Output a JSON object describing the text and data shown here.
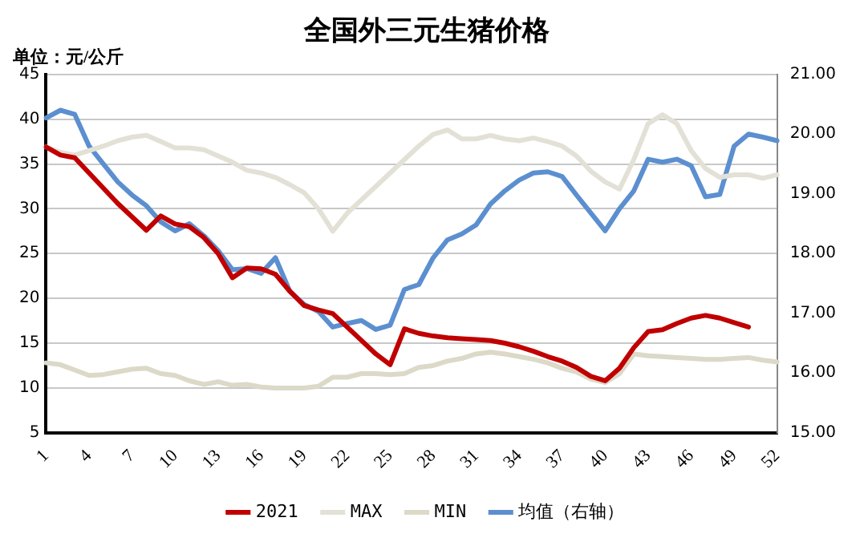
{
  "chart_data": {
    "type": "line",
    "title": "全国外三元生猪价格",
    "annotations": [
      "单位：元/公斤"
    ],
    "categories": [
      "1",
      null,
      null,
      "4",
      null,
      null,
      "7",
      null,
      null,
      "10",
      null,
      null,
      "13",
      null,
      null,
      "16",
      null,
      null,
      "19",
      null,
      null,
      "22",
      null,
      null,
      "25",
      null,
      null,
      "28",
      null,
      null,
      "31",
      null,
      null,
      "34",
      null,
      null,
      "37",
      null,
      null,
      "40",
      null,
      null,
      "43",
      null,
      null,
      "46",
      null,
      null,
      "49",
      null,
      null,
      "52"
    ],
    "series": [
      {
        "name": "2021",
        "color": "#c00000",
        "values": [
          36.9,
          36,
          35.7,
          34,
          32.3,
          30.6,
          29.1,
          27.6,
          29.2,
          28.3,
          28,
          26.8,
          25,
          22.3,
          23.4,
          23.3,
          22.7,
          20.8,
          19.2,
          18.7,
          18.3,
          16.8,
          15.3,
          13.8,
          12.6,
          16.6,
          16.1,
          15.8,
          15.6,
          15.5,
          15.4,
          15.3,
          15,
          14.6,
          14.1,
          13.5,
          13,
          12.3,
          11.3,
          10.8,
          12.2,
          14.5,
          16.3,
          16.5,
          17.2,
          17.8,
          18.1,
          17.8,
          17.3,
          16.8,
          null,
          null
        ]
      },
      {
        "name": "MAX",
        "color": "#e3e1d6",
        "values": [
          36.9,
          36.3,
          36,
          36.5,
          37,
          37.6,
          38,
          38.2,
          37.5,
          36.8,
          36.8,
          36.6,
          35.9,
          35.2,
          34.3,
          34,
          33.5,
          32.7,
          31.8,
          30,
          27.5,
          29.5,
          31,
          32.5,
          34,
          35.5,
          37,
          38.3,
          38.8,
          37.8,
          37.8,
          38.2,
          37.8,
          37.6,
          37.9,
          37.5,
          37,
          35.9,
          34.2,
          33,
          32.2,
          35.5,
          39.5,
          40.5,
          39.5,
          36.5,
          34.5,
          33.5,
          33.8,
          33.8,
          33.4,
          33.8
        ]
      },
      {
        "name": "MIN",
        "color": "#dcd9c8",
        "values": [
          12.8,
          12.6,
          12,
          11.4,
          11.5,
          11.8,
          12.1,
          12.2,
          11.6,
          11.4,
          10.8,
          10.4,
          10.7,
          10.3,
          10.4,
          10.1,
          10,
          10,
          10,
          10.2,
          11.2,
          11.2,
          11.6,
          11.6,
          11.5,
          11.6,
          12.3,
          12.5,
          13,
          13.3,
          13.8,
          14,
          13.8,
          13.5,
          13.2,
          12.8,
          12.2,
          11.8,
          11,
          10.6,
          11.6,
          13.8,
          13.6,
          13.5,
          13.4,
          13.3,
          13.2,
          13.2,
          13.3,
          13.4,
          13.1,
          12.9
        ]
      },
      {
        "name": "均值（右轴）",
        "color": "#5b8fd0",
        "axis": "y2",
        "values": [
          20.27,
          20.4,
          20.33,
          19.8,
          19.5,
          19.2,
          18.98,
          18.8,
          18.53,
          18.38,
          18.5,
          18.3,
          18.05,
          17.73,
          17.75,
          17.67,
          17.93,
          17.37,
          17.15,
          17.03,
          16.77,
          16.83,
          16.88,
          16.73,
          16.8,
          17.4,
          17.48,
          17.93,
          18.23,
          18.33,
          18.48,
          18.83,
          19.05,
          19.23,
          19.35,
          19.37,
          19.29,
          18.98,
          18.68,
          18.38,
          18.75,
          19.05,
          19.58,
          19.53,
          19.58,
          19.47,
          18.95,
          18.99,
          19.8,
          20,
          19.95,
          19.89
        ]
      }
    ],
    "ylim": [
      5,
      45
    ],
    "yticks": [
      5,
      10,
      15,
      20,
      25,
      30,
      35,
      40,
      45
    ],
    "y2lim": [
      15,
      21
    ],
    "y2ticks": [
      {
        "value": 15,
        "label": "15.00"
      },
      {
        "value": 16,
        "label": "16.00"
      },
      {
        "value": 17,
        "label": "17.00"
      },
      {
        "value": 18,
        "label": "18.00"
      },
      {
        "value": 19,
        "label": "19.00"
      },
      {
        "value": 20,
        "label": "20.00"
      },
      {
        "value": 21,
        "label": "21.00"
      }
    ],
    "grid": "y",
    "legend": "bottom",
    "marker": "none",
    "line_style": "solid"
  }
}
